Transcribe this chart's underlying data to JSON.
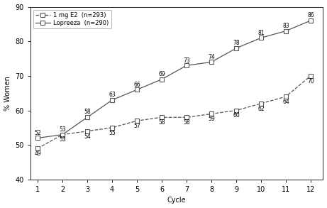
{
  "cycles": [
    1,
    2,
    3,
    4,
    5,
    6,
    7,
    8,
    9,
    10,
    11,
    12
  ],
  "lopreeza_values": [
    52,
    53,
    58,
    63,
    66,
    69,
    73,
    74,
    78,
    81,
    83,
    86
  ],
  "e2_values": [
    49,
    53,
    54,
    55,
    57,
    58,
    58,
    59,
    60,
    62,
    64,
    70
  ],
  "lopreeza_label": "Lopreeza  (n=290)",
  "e2_label": "1 mg E2  (n=293)",
  "xlabel": "Cycle",
  "ylabel": "% Women",
  "ylim": [
    40,
    90
  ],
  "xlim": [
    0.7,
    12.5
  ],
  "yticks": [
    40,
    50,
    60,
    70,
    80,
    90
  ],
  "xticks": [
    1,
    2,
    3,
    4,
    5,
    6,
    7,
    8,
    9,
    10,
    11,
    12
  ],
  "line_color": "#555555",
  "background_color": "#ffffff",
  "label_fontsize": 5.5,
  "axis_fontsize": 7,
  "legend_fontsize": 6.0
}
